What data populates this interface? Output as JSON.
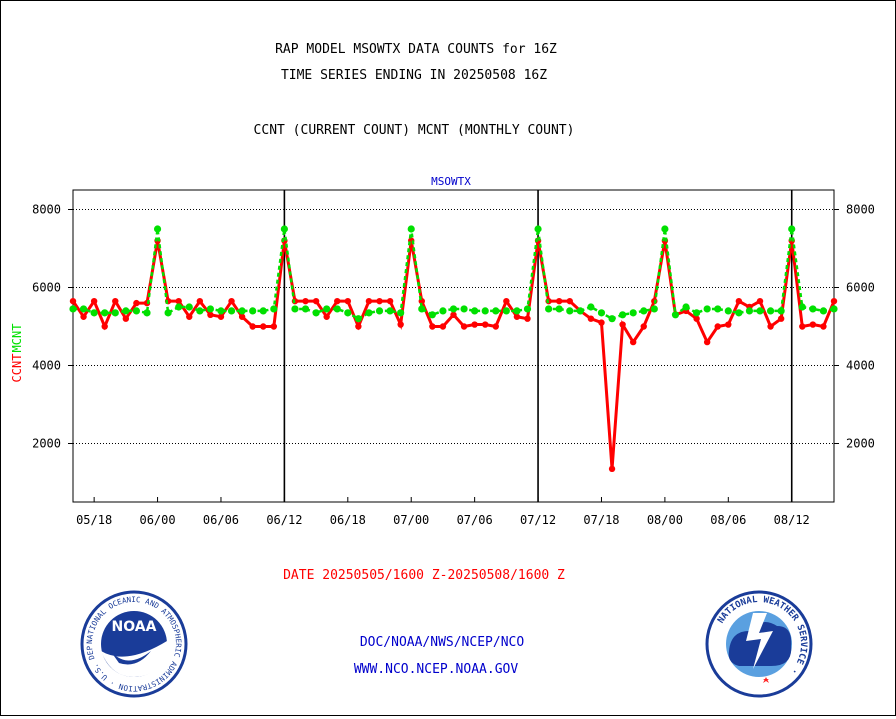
{
  "header": {
    "title_line1": "RAP MODEL MSOWTX DATA COUNTS for 16Z",
    "title_line2": "TIME SERIES ENDING IN 20250508 16Z",
    "subtitle": "CCNT (CURRENT COUNT) MCNT (MONTHLY COUNT)"
  },
  "footer": {
    "date_range": "DATE 20250505/1600 Z-20250508/1600 Z",
    "link1": "DOC/NOAA/NWS/NCEP/NCO",
    "link2": "WWW.NCO.NCEP.NOAA.GOV",
    "noaa_logo_text": "NOAA",
    "noaa_ring_text": "NATIONAL OCEANIC AND ATMOSPHERIC ADMINISTRATION · U.S. DEPARTMENT OF COMMERCE ·",
    "nws_ring_text": "NATIONAL WEATHER SERVICE ·"
  },
  "colors": {
    "ccnt": "#ff0000",
    "mcnt": "#00e000",
    "plot_title": "#0000cc",
    "footer_date": "#ff0000",
    "footer_links": "#0000cc"
  },
  "chart_data": {
    "type": "line",
    "plot_title": "MSOWTX",
    "ylabel_ccnt": "CCNT",
    "ylabel_mcnt": "MCNT",
    "x_ticks": [
      "05/18",
      "06/00",
      "06/06",
      "06/12",
      "06/18",
      "07/00",
      "07/06",
      "07/12",
      "07/18",
      "08/00",
      "08/06",
      "08/12"
    ],
    "x_tick_hours": [
      2,
      8,
      14,
      20,
      26,
      32,
      38,
      44,
      50,
      56,
      62,
      68
    ],
    "x_range": [
      0,
      72
    ],
    "day_boundaries": [
      20,
      44,
      68
    ],
    "y_ticks": [
      2000,
      4000,
      6000,
      8000
    ],
    "ylim": [
      500,
      8500
    ],
    "grid": true,
    "series": [
      {
        "name": "CCNT",
        "values": [
          5650,
          5250,
          5650,
          5000,
          5650,
          5200,
          5600,
          5600,
          7200,
          5650,
          5650,
          5250,
          5650,
          5300,
          5250,
          5650,
          5250,
          5000,
          5000,
          5000,
          7200,
          5650,
          5650,
          5650,
          5250,
          5650,
          5650,
          5000,
          5650,
          5650,
          5650,
          5050,
          7200,
          5650,
          5000,
          5000,
          5300,
          5000,
          5050,
          5050,
          5000,
          5650,
          5250,
          5200,
          7200,
          5650,
          5650,
          5650,
          5400,
          5200,
          5100,
          1350,
          5050,
          4600,
          5000,
          5650,
          7200,
          5300,
          5400,
          5200,
          4600,
          5000,
          5050,
          5650,
          5500,
          5650,
          5000,
          5200,
          7200,
          5000,
          5050,
          5000,
          5650
        ]
      },
      {
        "name": "MCNT",
        "values": [
          5450,
          5450,
          5350,
          5350,
          5350,
          5400,
          5400,
          5350,
          7500,
          5350,
          5500,
          5500,
          5400,
          5450,
          5400,
          5400,
          5400,
          5400,
          5400,
          5450,
          7500,
          5450,
          5450,
          5350,
          5450,
          5450,
          5350,
          5200,
          5350,
          5400,
          5400,
          5350,
          7500,
          5450,
          5300,
          5400,
          5450,
          5450,
          5400,
          5400,
          5400,
          5400,
          5400,
          5450,
          7500,
          5450,
          5450,
          5400,
          5400,
          5500,
          5350,
          5200,
          5300,
          5350,
          5400,
          5450,
          7500,
          5300,
          5500,
          5350,
          5450,
          5450,
          5400,
          5350,
          5400,
          5400,
          5400,
          5400,
          7500,
          5500,
          5450,
          5400,
          5450
        ]
      }
    ]
  }
}
